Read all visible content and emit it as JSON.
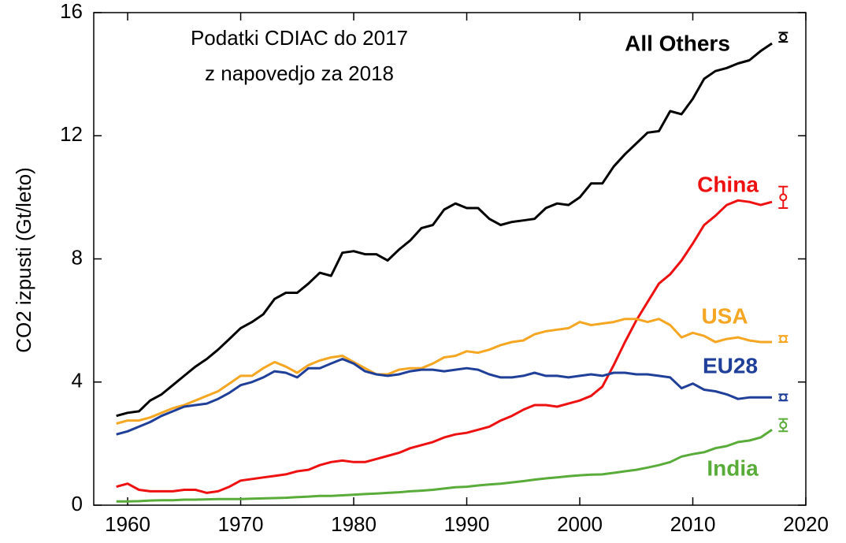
{
  "chart_data": {
    "type": "line",
    "ylabel": "CO2 izpusti (Gt/leto)",
    "annotations": [
      "Podatki CDIAC do 2017",
      "z napovedjo za 2018"
    ],
    "xlim": [
      1957,
      2020
    ],
    "xticks": [
      1960,
      1970,
      1980,
      1990,
      2000,
      2010,
      2020
    ],
    "ylim": [
      0,
      16
    ],
    "yticks": [
      0,
      4,
      8,
      12,
      16
    ],
    "x": [
      1959,
      1960,
      1961,
      1962,
      1963,
      1964,
      1965,
      1966,
      1967,
      1968,
      1969,
      1970,
      1971,
      1972,
      1973,
      1974,
      1975,
      1976,
      1977,
      1978,
      1979,
      1980,
      1981,
      1982,
      1983,
      1984,
      1985,
      1986,
      1987,
      1988,
      1989,
      1990,
      1991,
      1992,
      1993,
      1994,
      1995,
      1996,
      1997,
      1998,
      1999,
      2000,
      2001,
      2002,
      2003,
      2004,
      2005,
      2006,
      2007,
      2008,
      2009,
      2010,
      2011,
      2012,
      2013,
      2014,
      2015,
      2016,
      2017
    ],
    "projection_x": 2018,
    "series": [
      {
        "name": "All Others",
        "color": "#000000",
        "projection": 15.2,
        "projection_error": 0.15,
        "values": [
          2.9,
          3.0,
          3.05,
          3.4,
          3.6,
          3.9,
          4.2,
          4.5,
          4.75,
          5.05,
          5.4,
          5.75,
          5.95,
          6.2,
          6.7,
          6.9,
          6.9,
          7.2,
          7.55,
          7.45,
          8.2,
          8.25,
          8.15,
          8.15,
          7.95,
          8.3,
          8.6,
          9.0,
          9.1,
          9.6,
          9.8,
          9.65,
          9.65,
          9.3,
          9.1,
          9.2,
          9.25,
          9.3,
          9.65,
          9.8,
          9.75,
          10.0,
          10.45,
          10.45,
          11.0,
          11.4,
          11.75,
          12.1,
          12.15,
          12.8,
          12.7,
          13.2,
          13.85,
          14.1,
          14.2,
          14.35,
          14.45,
          14.75,
          15.0
        ]
      },
      {
        "name": "China",
        "color": "#ee1111",
        "projection": 10.0,
        "projection_error": 0.35,
        "values": [
          0.6,
          0.7,
          0.5,
          0.45,
          0.45,
          0.45,
          0.5,
          0.5,
          0.4,
          0.45,
          0.6,
          0.8,
          0.85,
          0.9,
          0.95,
          1.0,
          1.1,
          1.15,
          1.3,
          1.4,
          1.45,
          1.4,
          1.4,
          1.5,
          1.6,
          1.7,
          1.85,
          1.95,
          2.05,
          2.2,
          2.3,
          2.35,
          2.45,
          2.55,
          2.75,
          2.9,
          3.1,
          3.25,
          3.25,
          3.2,
          3.3,
          3.4,
          3.55,
          3.85,
          4.55,
          5.3,
          6.0,
          6.6,
          7.2,
          7.5,
          7.95,
          8.5,
          9.1,
          9.4,
          9.75,
          9.9,
          9.85,
          9.75,
          9.85
        ]
      },
      {
        "name": "USA",
        "color": "#f5a623",
        "projection": 5.4,
        "projection_error": 0.1,
        "values": [
          2.65,
          2.75,
          2.75,
          2.85,
          3.0,
          3.15,
          3.25,
          3.4,
          3.55,
          3.7,
          3.95,
          4.2,
          4.2,
          4.45,
          4.65,
          4.5,
          4.3,
          4.55,
          4.7,
          4.8,
          4.85,
          4.65,
          4.45,
          4.25,
          4.25,
          4.4,
          4.45,
          4.45,
          4.6,
          4.8,
          4.85,
          5.0,
          4.95,
          5.05,
          5.2,
          5.3,
          5.35,
          5.55,
          5.65,
          5.7,
          5.75,
          5.95,
          5.85,
          5.9,
          5.95,
          6.05,
          6.05,
          5.95,
          6.05,
          5.85,
          5.45,
          5.6,
          5.5,
          5.3,
          5.4,
          5.45,
          5.35,
          5.3,
          5.3
        ]
      },
      {
        "name": "EU28",
        "color": "#1f3f99",
        "projection": 3.5,
        "projection_error": 0.1,
        "values": [
          2.3,
          2.4,
          2.55,
          2.7,
          2.9,
          3.05,
          3.2,
          3.25,
          3.3,
          3.45,
          3.65,
          3.9,
          4.0,
          4.15,
          4.35,
          4.3,
          4.15,
          4.45,
          4.45,
          4.6,
          4.75,
          4.6,
          4.35,
          4.25,
          4.2,
          4.25,
          4.35,
          4.4,
          4.4,
          4.35,
          4.4,
          4.45,
          4.4,
          4.25,
          4.15,
          4.15,
          4.2,
          4.3,
          4.2,
          4.2,
          4.15,
          4.2,
          4.25,
          4.2,
          4.3,
          4.3,
          4.25,
          4.25,
          4.2,
          4.15,
          3.8,
          3.95,
          3.75,
          3.7,
          3.6,
          3.45,
          3.5,
          3.5,
          3.5
        ]
      },
      {
        "name": "India",
        "color": "#5aac3a",
        "projection": 2.6,
        "projection_error": 0.2,
        "values": [
          0.12,
          0.12,
          0.13,
          0.15,
          0.16,
          0.16,
          0.18,
          0.18,
          0.19,
          0.2,
          0.2,
          0.2,
          0.21,
          0.22,
          0.23,
          0.24,
          0.26,
          0.28,
          0.3,
          0.3,
          0.32,
          0.34,
          0.36,
          0.38,
          0.4,
          0.42,
          0.45,
          0.47,
          0.5,
          0.54,
          0.58,
          0.6,
          0.64,
          0.67,
          0.7,
          0.74,
          0.78,
          0.83,
          0.87,
          0.9,
          0.94,
          0.97,
          0.99,
          1.0,
          1.05,
          1.1,
          1.15,
          1.22,
          1.3,
          1.4,
          1.58,
          1.66,
          1.72,
          1.85,
          1.92,
          2.05,
          2.1,
          2.2,
          2.45
        ]
      }
    ]
  }
}
